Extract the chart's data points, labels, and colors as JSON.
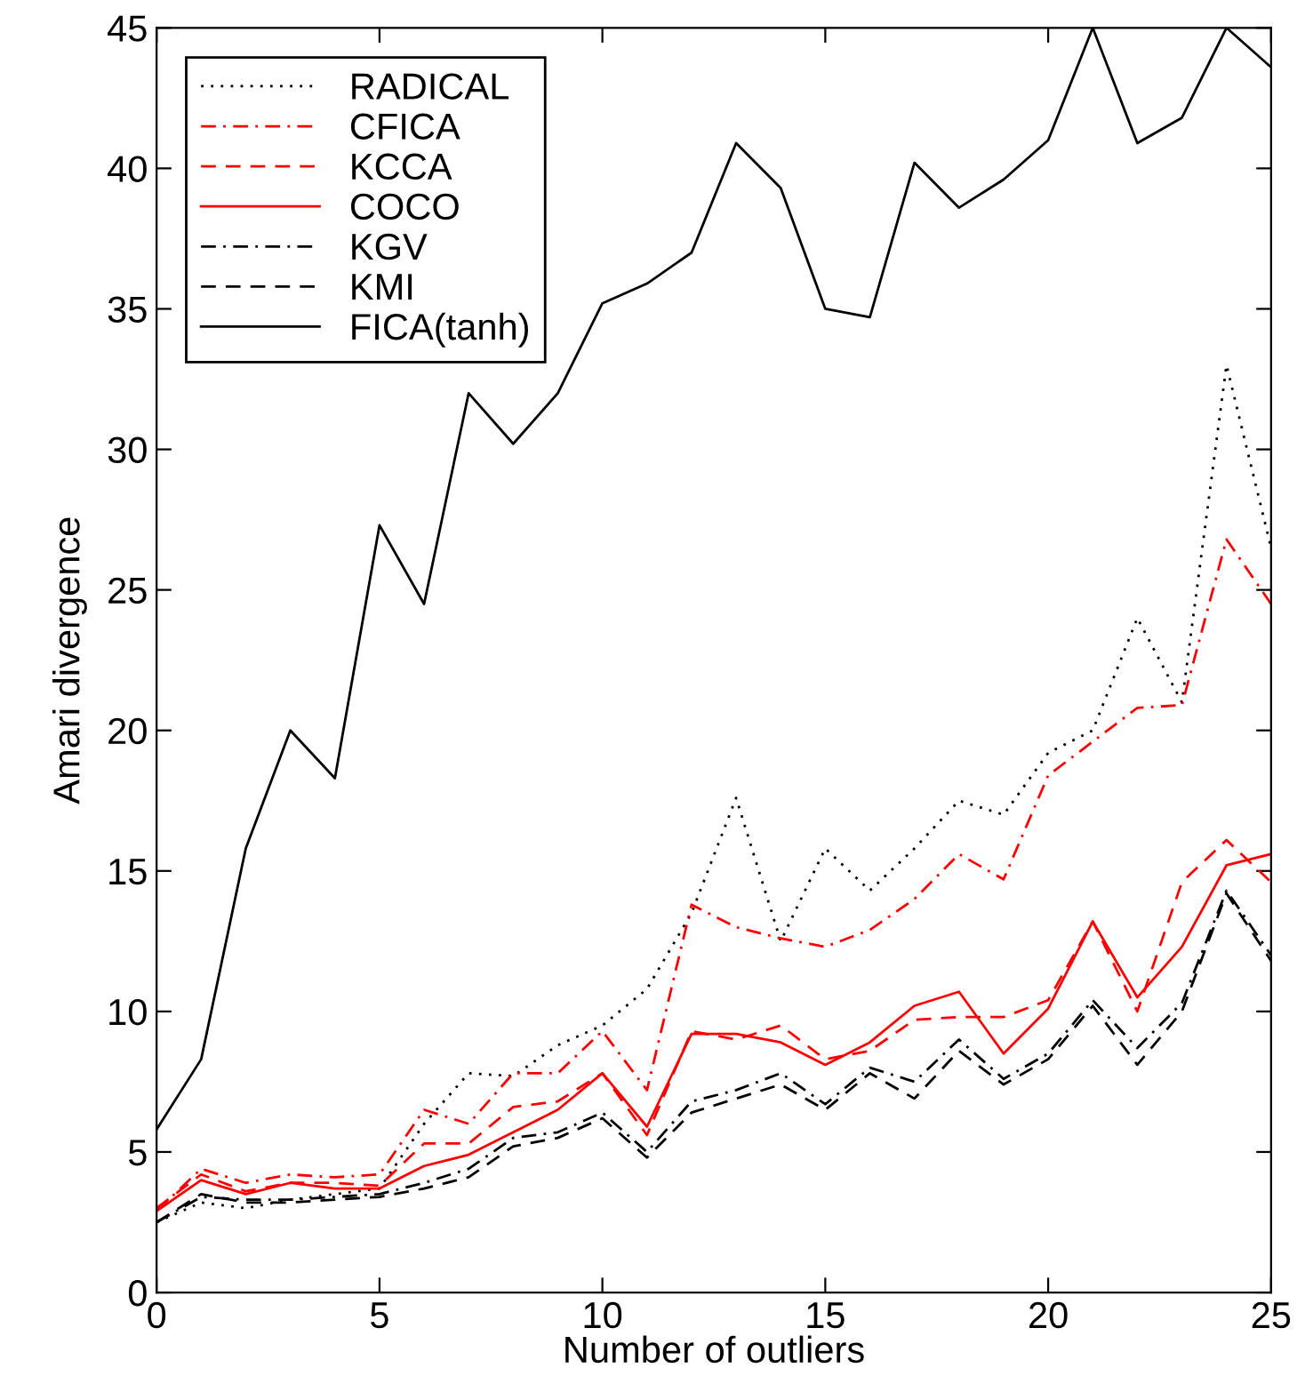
{
  "chart_data": {
    "type": "line",
    "xlabel": "Number of outliers",
    "ylabel": "Amari divergence",
    "x": [
      0,
      1,
      2,
      3,
      4,
      5,
      6,
      7,
      8,
      9,
      10,
      11,
      12,
      13,
      14,
      15,
      16,
      17,
      18,
      19,
      20,
      21,
      22,
      23,
      24,
      25
    ],
    "series": [
      {
        "name": "RADICAL",
        "color": "#000000",
        "line_style": "dotted",
        "values": [
          2.5,
          3.2,
          3.0,
          3.3,
          3.5,
          3.7,
          6.0,
          7.8,
          7.7,
          8.8,
          9.5,
          10.8,
          13.5,
          17.6,
          12.5,
          15.8,
          14.3,
          15.8,
          17.5,
          17.0,
          19.2,
          20.0,
          24.0,
          21.0,
          33.0,
          26.5
        ]
      },
      {
        "name": "CFICA",
        "color": "#ff0000",
        "line_style": "dashdot",
        "values": [
          2.9,
          4.4,
          3.9,
          4.2,
          4.1,
          4.2,
          6.5,
          6.0,
          7.8,
          7.8,
          9.3,
          7.2,
          13.8,
          13.0,
          12.6,
          12.3,
          12.9,
          14.0,
          15.6,
          14.7,
          18.4,
          19.6,
          20.8,
          20.9,
          26.8,
          24.5
        ]
      },
      {
        "name": "KCCA",
        "color": "#ff0000",
        "line_style": "dashed",
        "values": [
          3.0,
          4.2,
          3.6,
          3.9,
          3.9,
          3.8,
          5.3,
          5.3,
          6.6,
          6.8,
          7.8,
          5.6,
          9.3,
          9.0,
          9.5,
          8.3,
          8.6,
          9.7,
          9.8,
          9.8,
          10.4,
          13.2,
          10.0,
          14.6,
          16.1,
          14.6
        ]
      },
      {
        "name": "COCO",
        "color": "#ff0000",
        "line_style": "solid",
        "values": [
          2.9,
          4.0,
          3.5,
          3.9,
          3.7,
          3.7,
          4.5,
          4.9,
          5.7,
          6.5,
          7.8,
          5.9,
          9.2,
          9.2,
          8.9,
          8.1,
          8.9,
          10.2,
          10.7,
          8.5,
          10.1,
          13.2,
          10.5,
          12.3,
          15.2,
          15.6
        ]
      },
      {
        "name": "KGV",
        "color": "#000000",
        "line_style": "dashdot",
        "values": [
          2.5,
          3.4,
          3.3,
          3.3,
          3.4,
          3.5,
          3.9,
          4.4,
          5.5,
          5.7,
          6.4,
          5.0,
          6.8,
          7.2,
          7.8,
          6.7,
          8.0,
          7.5,
          9.0,
          7.6,
          8.5,
          10.4,
          8.7,
          10.3,
          14.3,
          12.0
        ]
      },
      {
        "name": "KMI",
        "color": "#000000",
        "line_style": "dashed",
        "values": [
          2.5,
          3.5,
          3.2,
          3.2,
          3.3,
          3.4,
          3.7,
          4.1,
          5.2,
          5.5,
          6.2,
          4.8,
          6.4,
          6.9,
          7.4,
          6.5,
          7.8,
          6.9,
          8.6,
          7.4,
          8.3,
          10.2,
          8.1,
          10.0,
          14.2,
          11.8
        ]
      },
      {
        "name": "FICA(tanh)",
        "color": "#000000",
        "line_style": "solid",
        "values": [
          5.8,
          8.3,
          15.8,
          20.0,
          18.3,
          27.3,
          24.5,
          32.0,
          30.2,
          32.0,
          35.2,
          35.9,
          37.0,
          40.9,
          39.3,
          35.0,
          34.7,
          40.2,
          38.6,
          39.6,
          41.0,
          45.0,
          40.9,
          41.8,
          45.0,
          43.6
        ]
      }
    ],
    "xlim": [
      0,
      25
    ],
    "xticks": [
      0,
      5,
      10,
      15,
      20,
      25
    ],
    "ylim": [
      0,
      45
    ],
    "yticks": [
      0,
      5,
      10,
      15,
      20,
      25,
      30,
      35,
      40,
      45
    ],
    "grid": false,
    "legend": "top left"
  }
}
